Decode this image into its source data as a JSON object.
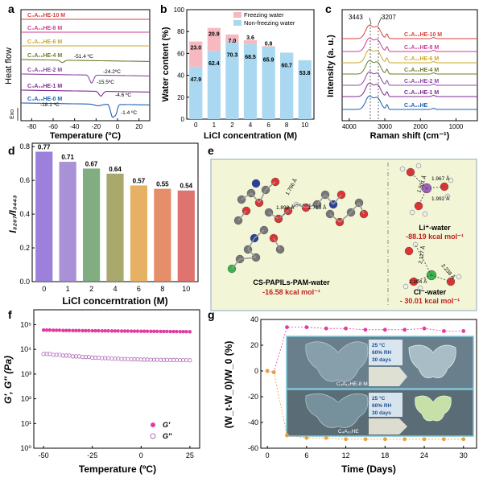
{
  "panels": {
    "a": "a",
    "b": "b",
    "c": "c",
    "d": "d",
    "e": "e",
    "f": "f",
    "g": "g"
  },
  "a": {
    "ylabel": "Heat flow",
    "xlabel": "Temperature (ºC)",
    "exo": "Exo",
    "xticks": [
      -80,
      -60,
      -40,
      -20,
      0,
      20
    ],
    "curves": [
      "C₄A₁₀HE-10 M",
      "C₄A₁₀HE-8 M",
      "C₄A₁₀HE-6 M",
      "C₄A₁₀HE-4 M",
      "C₄A₁₀HE-2 M",
      "C₄A₁₀HE-1 M",
      "C₄A₁₀HE-0 M"
    ],
    "colors": [
      "#d8423c",
      "#cf3f8f",
      "#c9a92c",
      "#6e7d2b",
      "#8a4aa6",
      "#7e2b8f",
      "#1d5fb0"
    ],
    "annotations": [
      "-51.4 ºC",
      "-24.2ºC",
      "-15.5ºC",
      "-4.6 ºC",
      "-18.1 ºC",
      "-1.4 ºC"
    ]
  },
  "b": {
    "ylabel": "Water content (%)",
    "xlabel": "LiCl concentration (M)",
    "legend": [
      "Freezing water",
      "Non-freezing water"
    ],
    "chart_data": {
      "type": "bar",
      "categories": [
        "0",
        "1",
        "2",
        "4",
        "6",
        "8",
        "10"
      ],
      "series": [
        {
          "name": "Non-freezing water",
          "values": [
            47.9,
            62.4,
            70.3,
            68.5,
            65.9,
            60.7,
            53.8
          ]
        },
        {
          "name": "Freezing water",
          "values": [
            23.0,
            20.9,
            7.0,
            3.6,
            0.8,
            0,
            0
          ]
        }
      ],
      "ylim": [
        0,
        100
      ],
      "yticks": [
        0,
        20,
        40,
        60,
        80,
        100
      ]
    },
    "labels_nf": [
      "47.9",
      "62.4",
      "70.3",
      "68.5",
      "65.9",
      "60.7",
      "53.8"
    ],
    "labels_f": [
      "23.0",
      "20.9",
      "7.0",
      "3.6",
      "0.8"
    ]
  },
  "c": {
    "ylabel": "Intensity (a. u.)",
    "xlabel": "Raman shift (cm⁻¹)",
    "peaks": [
      "3443",
      "3207"
    ],
    "xticks": [
      "4000",
      "3000",
      "2000",
      "1000"
    ],
    "curves": [
      "C₄A₁₀HE-10 M",
      "C₄A₁₀HE-8 M",
      "C₄A₁₀HE-6 M",
      "C₄A₁₀HE-4 M",
      "C₄A₁₀HE-2 M",
      "C₄A₁₀HE-1 M",
      "C₄A₁₀HE"
    ],
    "colors": [
      "#d8423c",
      "#cf3f8f",
      "#c9a92c",
      "#6e7d2b",
      "#8a4aa6",
      "#7e2b8f",
      "#1d5fb0"
    ]
  },
  "d": {
    "ylabel": "I₃₂₀₇/I₃₄₄₃",
    "xlabel": "LiCl concerntration (M)",
    "chart_data": {
      "type": "bar",
      "categories": [
        "0",
        "1",
        "2",
        "4",
        "6",
        "8",
        "10"
      ],
      "values": [
        0.77,
        0.71,
        0.67,
        0.64,
        0.57,
        0.55,
        0.54
      ],
      "ylim": [
        0,
        0.8
      ],
      "yticks": [
        0.0,
        0.2,
        0.4,
        0.6,
        0.8
      ]
    },
    "labels": [
      "0.77",
      "0.71",
      "0.67",
      "0.64",
      "0.57",
      "0.55",
      "0.54"
    ],
    "colors": [
      "#8a6bd6",
      "#9a7ed0",
      "#6aa06a",
      "#9a9a55",
      "#e2a24a",
      "#e07a50",
      "#d95a55"
    ]
  },
  "e": {
    "left_label": "CS-PAPILs-PAM-water",
    "left_energy": "-16.58 kcal mol⁻¹",
    "li_label": "Li⁺-water",
    "li_energy": "-88.19 kcal mol⁻¹",
    "cl_label": "Cl⁻-water",
    "cl_energy": "- 30.01 kcal mol⁻¹",
    "bonds_left": [
      "1.892 Å",
      "1.713 Å",
      "1.766 Å"
    ],
    "bonds_li": [
      "1.967 Å",
      "1.992 Å",
      "1.901 Å"
    ],
    "bonds_cl": [
      "2.127 Å",
      "2.238 Å",
      "2.104 Å"
    ]
  },
  "f": {
    "ylabel": "G′, G′′ (Pa)",
    "xlabel": "Temperature (ºC)",
    "legend": [
      "G′",
      "G′′"
    ],
    "xticks": [
      "-50",
      "-25",
      "0",
      "25"
    ],
    "yticks": [
      "10⁰",
      "10¹",
      "10²",
      "10³",
      "10⁴",
      "10⁵"
    ],
    "chart_data": {
      "type": "scatter",
      "x": [
        -50,
        -45,
        -40,
        -35,
        -30,
        -25,
        -20,
        -15,
        -10,
        -5,
        0,
        5,
        10,
        15,
        20,
        25
      ],
      "series": [
        {
          "name": "G′",
          "values": [
            60000,
            59000,
            58000,
            57500,
            57000,
            56500,
            56000,
            55500,
            55000,
            54500,
            54000,
            53500,
            53000,
            52500,
            52000,
            51500
          ]
        },
        {
          "name": "G′′",
          "values": [
            6500,
            6000,
            5600,
            5200,
            4900,
            4600,
            4400,
            4200,
            4050,
            3950,
            3850,
            3800,
            3750,
            3700,
            3650,
            3600
          ]
        }
      ],
      "ylim": [
        1,
        100000
      ],
      "yscale": "log"
    }
  },
  "g": {
    "ylabel": "(W_t-W_0)/W_0 (%)",
    "xlabel": "Time (Days)",
    "xticks": [
      "0",
      "6",
      "12",
      "18",
      "24",
      "30"
    ],
    "yticks": [
      "-60",
      "-40",
      "-20",
      "0",
      "20",
      "40"
    ],
    "cond_lines": [
      "25 °C",
      "60% RH",
      "30 days"
    ],
    "sample_top": "C₄A₁₀HE-8 M",
    "sample_bottom": "C₄A₁₀HE",
    "chart_data": {
      "type": "scatter",
      "x": [
        0,
        1,
        3,
        6,
        9,
        12,
        15,
        18,
        21,
        24,
        27,
        30
      ],
      "series": [
        {
          "name": "C₄A₁₀HE-8 M",
          "values": [
            0,
            -1,
            34,
            34,
            33,
            33,
            32,
            32,
            32,
            33,
            31,
            31
          ]
        },
        {
          "name": "C₄A₁₀HE",
          "values": [
            0,
            -1,
            -50,
            -52,
            -52,
            -53,
            -53,
            -53,
            -53,
            -53,
            -53,
            -53
          ]
        }
      ],
      "ylim": [
        -60,
        40
      ]
    }
  }
}
